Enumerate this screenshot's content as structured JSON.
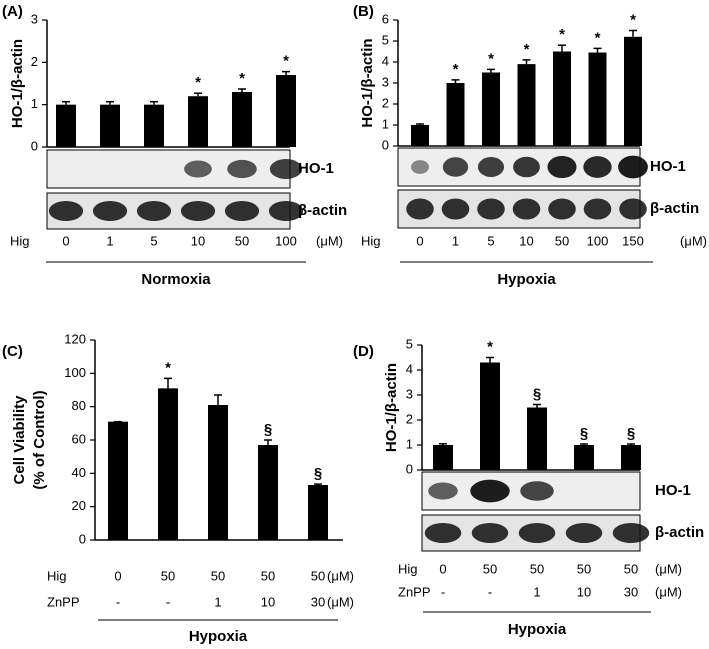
{
  "chart_data": [
    {
      "type": "bar",
      "panel": "(A)",
      "ylabel": [
        "HO-1/β-actin"
      ],
      "color": "#000000",
      "categories": [
        "0",
        "1",
        "5",
        "10",
        "50",
        "100"
      ],
      "category_name": "Hig",
      "category_unit": "(μM)",
      "values": [
        1.0,
        1.0,
        1.0,
        1.2,
        1.3,
        1.7
      ],
      "errors": [
        0.07,
        0.07,
        0.07,
        0.07,
        0.07,
        0.08
      ],
      "value_annotations": [
        null,
        null,
        null,
        "*",
        "*",
        "*"
      ],
      "ylim": [
        0,
        3
      ],
      "yticks": [
        0,
        1,
        2,
        3
      ],
      "blots": [
        "HO-1",
        "β-actin"
      ],
      "group": "Normoxia"
    },
    {
      "type": "bar",
      "panel": "(B)",
      "ylabel": [
        "HO-1/β-actin"
      ],
      "color": "#000000",
      "categories": [
        "0",
        "1",
        "5",
        "10",
        "50",
        "100",
        "150"
      ],
      "category_name": "Hig",
      "category_unit": "(μM)",
      "values": [
        1.0,
        3.0,
        3.5,
        3.9,
        4.5,
        4.45,
        5.2
      ],
      "errors": [
        0.05,
        0.15,
        0.15,
        0.2,
        0.3,
        0.2,
        0.3
      ],
      "value_annotations": [
        null,
        "*",
        "*",
        "*",
        "*",
        "*",
        "*"
      ],
      "ylim": [
        0,
        6
      ],
      "yticks": [
        0,
        1,
        2,
        3,
        4,
        5,
        6
      ],
      "blots": [
        "HO-1",
        "β-actin"
      ],
      "group": "Hypoxia"
    },
    {
      "type": "bar",
      "panel": "(C)",
      "ylabel": [
        "Cell Viability",
        "(% of  Control)"
      ],
      "color": "#000000",
      "categories": [
        "0",
        "50",
        "50",
        "50",
        "50"
      ],
      "category_name": "Hig",
      "category_unit": "(μM)",
      "second_row": {
        "name": "ZnPP",
        "labels": [
          "-",
          "-",
          "1",
          "10",
          "30"
        ],
        "unit": "(μM)"
      },
      "values": [
        71,
        91,
        81,
        57,
        33
      ],
      "errors": [
        0,
        6,
        6,
        3,
        0.5
      ],
      "value_annotations": [
        null,
        "*",
        null,
        "§",
        "§"
      ],
      "ylim": [
        0,
        120
      ],
      "yticks": [
        0,
        20,
        40,
        60,
        80,
        100,
        120
      ],
      "group": "Hypoxia"
    },
    {
      "type": "bar",
      "panel": "(D)",
      "ylabel": [
        "HO-1/β-actin"
      ],
      "color": "#000000",
      "categories": [
        "0",
        "50",
        "50",
        "50",
        "50"
      ],
      "category_name": "Hig",
      "category_unit": "(μM)",
      "second_row": {
        "name": "ZnPP",
        "labels": [
          "-",
          "-",
          "1",
          "10",
          "30"
        ],
        "unit": "(μM)"
      },
      "values": [
        1.0,
        4.3,
        2.5,
        1.0,
        1.0
      ],
      "errors": [
        0.05,
        0.2,
        0.12,
        0.04,
        0.04
      ],
      "value_annotations": [
        null,
        "*",
        "§",
        "§",
        "§"
      ],
      "ylim": [
        0,
        5
      ],
      "yticks": [
        0,
        1,
        2,
        3,
        4,
        5
      ],
      "blots": [
        "HO-1",
        "β-actin"
      ],
      "group": "Hypoxia"
    }
  ]
}
